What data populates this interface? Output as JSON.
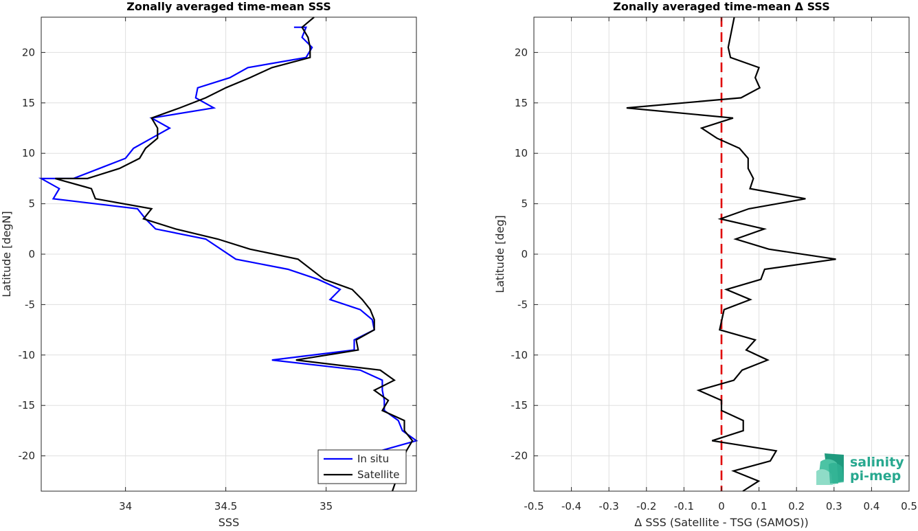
{
  "chart_data": [
    {
      "type": "line",
      "title": "Zonally averaged time-mean SSS",
      "xlabel": "SSS",
      "ylabel": "Latitude [degN]",
      "xlim": [
        33.58,
        35.45
      ],
      "ylim": [
        -23.5,
        23.5
      ],
      "xticks": [
        34,
        34.5,
        35
      ],
      "xtick_labels": [
        "34",
        "34.5",
        "35"
      ],
      "yticks": [
        -20,
        -15,
        -10,
        -5,
        0,
        5,
        10,
        15,
        20
      ],
      "ytick_labels": [
        "-20",
        "-15",
        "-10",
        "-5",
        "0",
        "5",
        "10",
        "15",
        "20"
      ],
      "grid": true,
      "legend_position": "bottom-right",
      "series": [
        {
          "name": "In situ",
          "color": "#0000ff",
          "points": [
            [
              34.84,
              22.5
            ],
            [
              34.9,
              22.5
            ],
            [
              34.88,
              21.5
            ],
            [
              34.93,
              20.5
            ],
            [
              34.9,
              19.5
            ],
            [
              34.61,
              18.5
            ],
            [
              34.52,
              17.5
            ],
            [
              34.36,
              16.5
            ],
            [
              34.35,
              15.5
            ],
            [
              34.44,
              14.5
            ],
            [
              34.13,
              13.5
            ],
            [
              34.22,
              12.5
            ],
            [
              34.13,
              11.5
            ],
            [
              34.04,
              10.5
            ],
            [
              34.0,
              9.5
            ],
            [
              33.87,
              8.5
            ],
            [
              33.74,
              7.5
            ],
            [
              33.58,
              7.5
            ],
            [
              33.67,
              6.5
            ],
            [
              33.64,
              5.5
            ],
            [
              34.06,
              4.5
            ],
            [
              34.1,
              3.5
            ],
            [
              34.15,
              2.5
            ],
            [
              34.4,
              1.5
            ],
            [
              34.55,
              -0.5
            ],
            [
              34.81,
              -1.5
            ],
            [
              34.96,
              -2.5
            ],
            [
              35.07,
              -3.5
            ],
            [
              35.02,
              -4.5
            ],
            [
              35.17,
              -5.5
            ],
            [
              35.23,
              -6.5
            ],
            [
              35.24,
              -7.5
            ],
            [
              35.14,
              -8.5
            ],
            [
              35.14,
              -9.5
            ],
            [
              34.73,
              -10.5
            ],
            [
              35.17,
              -11.5
            ],
            [
              35.28,
              -12.5
            ],
            [
              35.28,
              -13.5
            ],
            [
              35.29,
              -14.5
            ],
            [
              35.29,
              -15.5
            ],
            [
              35.36,
              -16.5
            ],
            [
              35.38,
              -17.5
            ],
            [
              35.45,
              -18.5
            ],
            [
              35.27,
              -19.5
            ]
          ]
        },
        {
          "name": "Satellite",
          "color": "#000000",
          "points": [
            [
              34.94,
              23.5
            ],
            [
              34.88,
              22.5
            ],
            [
              34.91,
              21.5
            ],
            [
              34.92,
              20.5
            ],
            [
              34.92,
              19.5
            ],
            [
              34.73,
              18.5
            ],
            [
              34.62,
              17.5
            ],
            [
              34.5,
              16.5
            ],
            [
              34.4,
              15.5
            ],
            [
              34.27,
              14.5
            ],
            [
              34.13,
              13.5
            ],
            [
              34.16,
              12.5
            ],
            [
              34.16,
              11.5
            ],
            [
              34.1,
              10.5
            ],
            [
              34.07,
              9.5
            ],
            [
              33.97,
              8.5
            ],
            [
              33.81,
              7.5
            ],
            [
              33.65,
              7.5
            ],
            [
              33.83,
              6.5
            ],
            [
              33.85,
              5.5
            ],
            [
              34.13,
              4.5
            ],
            [
              34.09,
              3.5
            ],
            [
              34.25,
              2.5
            ],
            [
              34.46,
              1.5
            ],
            [
              34.62,
              0.5
            ],
            [
              34.86,
              -0.5
            ],
            [
              34.99,
              -2.5
            ],
            [
              35.13,
              -3.5
            ],
            [
              35.18,
              -4.5
            ],
            [
              35.22,
              -5.5
            ],
            [
              35.24,
              -6.5
            ],
            [
              35.24,
              -7.5
            ],
            [
              35.15,
              -8.5
            ],
            [
              35.16,
              -9.5
            ],
            [
              34.85,
              -10.5
            ],
            [
              35.27,
              -11.5
            ],
            [
              35.34,
              -12.5
            ],
            [
              35.24,
              -13.5
            ],
            [
              35.31,
              -14.5
            ],
            [
              35.28,
              -15.5
            ],
            [
              35.39,
              -16.5
            ],
            [
              35.39,
              -17.5
            ],
            [
              35.43,
              -18.5
            ],
            [
              35.4,
              -19.5
            ],
            [
              35.33,
              -23.5
            ]
          ]
        }
      ]
    },
    {
      "type": "line",
      "title": "Zonally averaged time-mean Δ SSS",
      "xlabel": "Δ SSS (Satellite - TSG (SAMOS))",
      "ylabel": "Latitude [deg]",
      "xlim": [
        -0.5,
        0.5
      ],
      "ylim": [
        -23.5,
        23.5
      ],
      "xticks": [
        -0.5,
        -0.4,
        -0.3,
        -0.2,
        -0.1,
        0,
        0.1,
        0.2,
        0.3,
        0.4,
        0.5
      ],
      "xtick_labels": [
        "-0.5",
        "-0.4",
        "-0.3",
        "-0.2",
        "-0.1",
        "0",
        "0.1",
        "0.2",
        "0.3",
        "0.4",
        "0.5"
      ],
      "yticks": [
        -20,
        -15,
        -10,
        -5,
        0,
        5,
        10,
        15,
        20
      ],
      "ytick_labels": [
        "-20",
        "-15",
        "-10",
        "-5",
        "0",
        "5",
        "10",
        "15",
        "20"
      ],
      "grid": true,
      "reference_line": {
        "x": 0,
        "color": "#e00000",
        "style": "dashed"
      },
      "series": [
        {
          "color": "#000000",
          "points": [
            [
              0.034,
              23.5
            ],
            [
              0.018,
              20.5
            ],
            [
              0.024,
              19.5
            ],
            [
              0.1,
              18.5
            ],
            [
              0.09,
              17.5
            ],
            [
              0.102,
              16.5
            ],
            [
              0.052,
              15.5
            ],
            [
              -0.253,
              14.5
            ],
            [
              0.031,
              13.5
            ],
            [
              -0.053,
              12.5
            ],
            [
              -0.012,
              11.5
            ],
            [
              0.048,
              10.5
            ],
            [
              0.071,
              9.5
            ],
            [
              0.071,
              8.5
            ],
            [
              0.085,
              7.5
            ],
            [
              0.076,
              6.5
            ],
            [
              0.224,
              5.5
            ],
            [
              0.073,
              4.5
            ],
            [
              -0.003,
              3.5
            ],
            [
              0.114,
              2.5
            ],
            [
              0.038,
              1.5
            ],
            [
              0.126,
              0.5
            ],
            [
              0.305,
              -0.5
            ],
            [
              0.115,
              -1.5
            ],
            [
              0.105,
              -2.5
            ],
            [
              0.013,
              -3.5
            ],
            [
              0.077,
              -4.5
            ],
            [
              0.007,
              -5.5
            ],
            [
              -0.005,
              -7.5
            ],
            [
              0.09,
              -8.5
            ],
            [
              0.066,
              -9.5
            ],
            [
              0.123,
              -10.5
            ],
            [
              0.055,
              -11.5
            ],
            [
              0.033,
              -12.5
            ],
            [
              -0.061,
              -13.5
            ],
            [
              0.0,
              -14.5
            ],
            [
              0.0,
              -15.5
            ],
            [
              0.058,
              -16.5
            ],
            [
              0.058,
              -17.5
            ],
            [
              -0.025,
              -18.5
            ],
            [
              0.146,
              -19.5
            ],
            [
              0.13,
              -20.5
            ],
            [
              0.032,
              -21.5
            ],
            [
              0.099,
              -22.5
            ],
            [
              0.057,
              -23.5
            ]
          ]
        }
      ]
    }
  ],
  "logo": {
    "line1": "salinity",
    "line2": "pi-mep",
    "color": "#27a88f"
  }
}
